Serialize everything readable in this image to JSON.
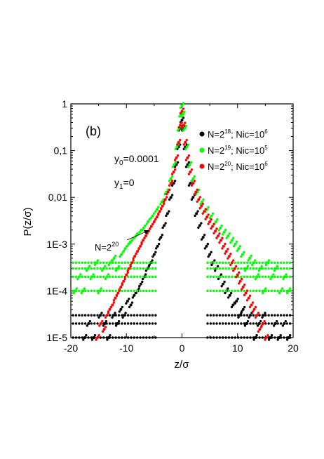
{
  "chart_data": {
    "type": "scatter",
    "panel_label": "(b)",
    "ylabel": "P(z/σ)",
    "xlabel": "z/σ",
    "xlim": [
      -20,
      20
    ],
    "ylim": [
      1e-05,
      1
    ],
    "y_scale": "log",
    "x_ticks": [
      -20,
      -10,
      0,
      10,
      20
    ],
    "x_tick_labels": [
      "-20",
      "-10",
      "0",
      "10",
      "20"
    ],
    "y_ticks": [
      1e-05,
      0.0001,
      0.001,
      0.01,
      0.1,
      1
    ],
    "y_tick_labels": [
      "1E-5",
      "1E-4",
      "1E-3",
      "0,01",
      "0,1",
      "1"
    ],
    "grid": false,
    "legend_position": "top-right",
    "annotations": {
      "y0": "y0=0.0001",
      "y1": "y1=0",
      "arrow_label": "N=2^20"
    },
    "series": [
      {
        "name": "N=2^18; Nic=10^6",
        "color": "#000000",
        "tail_levels": [
          3e-05,
          2e-05,
          1e-05
        ],
        "points": [
          [
            -17.5,
            1e-05
          ],
          [
            -16.8,
            2e-05
          ],
          [
            -15.9,
            1e-05
          ],
          [
            -14.7,
            3e-05
          ],
          [
            -13.9,
            2e-05
          ],
          [
            -13.2,
            1e-05
          ],
          [
            -12.3,
            3e-05
          ],
          [
            -11.6,
            2e-05
          ],
          [
            -11.0,
            4e-05
          ],
          [
            -10.4,
            3e-05
          ],
          [
            -9.8,
            6e-05
          ],
          [
            -9.2,
            5e-05
          ],
          [
            -8.6,
            8e-05
          ],
          [
            -8.0,
            0.0001
          ],
          [
            -7.4,
            0.00014
          ],
          [
            -6.8,
            0.0002
          ],
          [
            -6.2,
            0.0003
          ],
          [
            -5.6,
            0.0004
          ],
          [
            -5.0,
            0.0006
          ],
          [
            -4.4,
            0.0009
          ],
          [
            -3.8,
            0.0014
          ],
          [
            -3.2,
            0.0025
          ],
          [
            -2.6,
            0.0045
          ],
          [
            -2.0,
            0.01
          ],
          [
            -1.5,
            0.02
          ],
          [
            -1.0,
            0.05
          ],
          [
            -0.6,
            0.12
          ],
          [
            -0.3,
            0.3
          ],
          [
            0.0,
            0.45
          ],
          [
            0.3,
            0.3
          ],
          [
            0.6,
            0.12
          ],
          [
            1.0,
            0.05
          ],
          [
            1.5,
            0.02
          ],
          [
            2.0,
            0.01
          ],
          [
            2.6,
            0.0045
          ],
          [
            3.2,
            0.0025
          ],
          [
            3.8,
            0.0014
          ],
          [
            4.4,
            0.0009
          ],
          [
            5.0,
            0.0006
          ],
          [
            5.6,
            0.0004
          ],
          [
            6.2,
            0.0003
          ],
          [
            6.8,
            0.0002
          ],
          [
            7.4,
            0.00014
          ],
          [
            8.0,
            0.0001
          ],
          [
            8.6,
            8e-05
          ],
          [
            9.2,
            5e-05
          ],
          [
            9.8,
            6e-05
          ],
          [
            10.4,
            3e-05
          ],
          [
            11.0,
            4e-05
          ],
          [
            11.6,
            2e-05
          ],
          [
            12.3,
            3e-05
          ],
          [
            13.2,
            1e-05
          ],
          [
            13.9,
            2e-05
          ],
          [
            14.7,
            3e-05
          ],
          [
            15.9,
            1e-05
          ],
          [
            16.8,
            2e-05
          ],
          [
            17.5,
            1e-05
          ],
          [
            18.4,
            2e-05
          ],
          [
            19.2,
            1e-05
          ]
        ]
      },
      {
        "name": "N=2^19; Nic=10^5",
        "color": "#00ff00",
        "tail_levels": [
          0.0004,
          0.0003,
          0.0002,
          0.0001
        ],
        "points": [
          [
            -19.2,
            0.0001
          ],
          [
            -18.5,
            0.0002
          ],
          [
            -17.8,
            0.0001
          ],
          [
            -16.9,
            0.0003
          ],
          [
            -16.2,
            0.0002
          ],
          [
            -15.4,
            0.0004
          ],
          [
            -14.8,
            0.0001
          ],
          [
            -14.1,
            0.0003
          ],
          [
            -13.5,
            0.0002
          ],
          [
            -12.9,
            0.0004
          ],
          [
            -12.2,
            0.0005
          ],
          [
            -11.6,
            0.0003
          ],
          [
            -10.9,
            0.0006
          ],
          [
            -10.2,
            0.0008
          ],
          [
            -9.6,
            0.001
          ],
          [
            -9.0,
            0.0012
          ],
          [
            -8.3,
            0.0015
          ],
          [
            -7.6,
            0.0018
          ],
          [
            -6.9,
            0.0022
          ],
          [
            -6.1,
            0.003
          ],
          [
            -5.3,
            0.004
          ],
          [
            -4.5,
            0.0055
          ],
          [
            -3.6,
            0.008
          ],
          [
            -2.8,
            0.013
          ],
          [
            -2.0,
            0.025
          ],
          [
            -1.4,
            0.05
          ],
          [
            -0.9,
            0.12
          ],
          [
            -0.5,
            0.3
          ],
          [
            -0.2,
            0.6
          ],
          [
            0.0,
            0.92
          ],
          [
            0.2,
            0.6
          ],
          [
            0.5,
            0.3
          ],
          [
            0.9,
            0.12
          ],
          [
            1.4,
            0.05
          ],
          [
            2.0,
            0.025
          ],
          [
            2.8,
            0.013
          ],
          [
            3.6,
            0.008
          ],
          [
            4.5,
            0.0055
          ],
          [
            5.3,
            0.004
          ],
          [
            6.1,
            0.003
          ],
          [
            6.9,
            0.0022
          ],
          [
            7.6,
            0.0018
          ],
          [
            8.3,
            0.0015
          ],
          [
            9.0,
            0.0012
          ],
          [
            9.6,
            0.001
          ],
          [
            10.2,
            0.0008
          ],
          [
            10.9,
            0.0006
          ],
          [
            11.6,
            0.0003
          ],
          [
            12.2,
            0.0005
          ],
          [
            12.9,
            0.0004
          ],
          [
            13.5,
            0.0002
          ],
          [
            14.1,
            0.0003
          ],
          [
            14.8,
            0.0001
          ],
          [
            15.4,
            0.0004
          ],
          [
            16.2,
            0.0002
          ],
          [
            16.9,
            0.0003
          ],
          [
            17.8,
            0.0001
          ],
          [
            18.5,
            0.0002
          ],
          [
            19.2,
            0.0001
          ]
        ]
      },
      {
        "name": "N=2^20; Nic=10^6",
        "color": "#ff0000",
        "tail_levels": [],
        "points": [
          [
            -15.2,
            1e-05
          ],
          [
            -14.6,
            2e-05
          ],
          [
            -14.0,
            1.5e-05
          ],
          [
            -13.5,
            3e-05
          ],
          [
            -13.0,
            4e-05
          ],
          [
            -12.5,
            5e-05
          ],
          [
            -12.0,
            7e-05
          ],
          [
            -11.5,
            9e-05
          ],
          [
            -11.0,
            0.00012
          ],
          [
            -10.5,
            0.00016
          ],
          [
            -10.0,
            0.00022
          ],
          [
            -9.5,
            0.0003
          ],
          [
            -9.0,
            0.0004
          ],
          [
            -8.5,
            0.00055
          ],
          [
            -8.0,
            0.0007
          ],
          [
            -7.5,
            0.0009
          ],
          [
            -7.0,
            0.0012
          ],
          [
            -6.5,
            0.0015
          ],
          [
            -6.0,
            0.0019
          ],
          [
            -5.5,
            0.0024
          ],
          [
            -5.0,
            0.003
          ],
          [
            -4.5,
            0.0038
          ],
          [
            -4.0,
            0.005
          ],
          [
            -3.5,
            0.0065
          ],
          [
            -3.0,
            0.009
          ],
          [
            -2.5,
            0.013
          ],
          [
            -2.0,
            0.02
          ],
          [
            -1.5,
            0.035
          ],
          [
            -1.0,
            0.07
          ],
          [
            -0.6,
            0.15
          ],
          [
            -0.3,
            0.35
          ],
          [
            0.0,
            0.7
          ],
          [
            0.3,
            0.35
          ],
          [
            0.6,
            0.15
          ],
          [
            1.0,
            0.07
          ],
          [
            1.5,
            0.035
          ],
          [
            2.0,
            0.02
          ],
          [
            2.5,
            0.013
          ],
          [
            3.0,
            0.009
          ],
          [
            3.5,
            0.0065
          ],
          [
            4.0,
            0.005
          ],
          [
            4.5,
            0.0038
          ],
          [
            5.0,
            0.003
          ],
          [
            5.5,
            0.0024
          ],
          [
            6.0,
            0.0019
          ],
          [
            6.5,
            0.0015
          ],
          [
            7.0,
            0.0012
          ],
          [
            7.5,
            0.0009
          ],
          [
            8.0,
            0.0007
          ],
          [
            8.5,
            0.00055
          ],
          [
            9.0,
            0.0004
          ],
          [
            9.5,
            0.0003
          ],
          [
            10.0,
            0.00022
          ],
          [
            10.5,
            0.00016
          ],
          [
            11.0,
            0.00012
          ],
          [
            11.5,
            9e-05
          ],
          [
            12.0,
            7e-05
          ],
          [
            12.5,
            5e-05
          ],
          [
            13.0,
            4e-05
          ],
          [
            13.5,
            3e-05
          ],
          [
            14.0,
            1.5e-05
          ],
          [
            14.6,
            2e-05
          ],
          [
            15.2,
            1e-05
          ]
        ]
      }
    ]
  },
  "legend": {
    "s1": {
      "base": "N=2",
      "exp": "18",
      "mid": "; Nic=10",
      "exp2": "6"
    },
    "s2": {
      "base": "N=2",
      "exp": "19",
      "mid": "; Nic=10",
      "exp2": "5"
    },
    "s3": {
      "base": "N=2",
      "exp": "20",
      "mid": "; Nic=10",
      "exp2": "6"
    }
  },
  "text": {
    "panel_label": "(b)",
    "y0_base": "y",
    "y0_sub": "0",
    "y0_rest": "=0.0001",
    "y1_base": "y",
    "y1_sub": "1",
    "y1_rest": "=0",
    "arrow_base": "N=2",
    "arrow_exp": "20",
    "ylabel": "P(z/σ)",
    "xlabel": "z/σ"
  }
}
